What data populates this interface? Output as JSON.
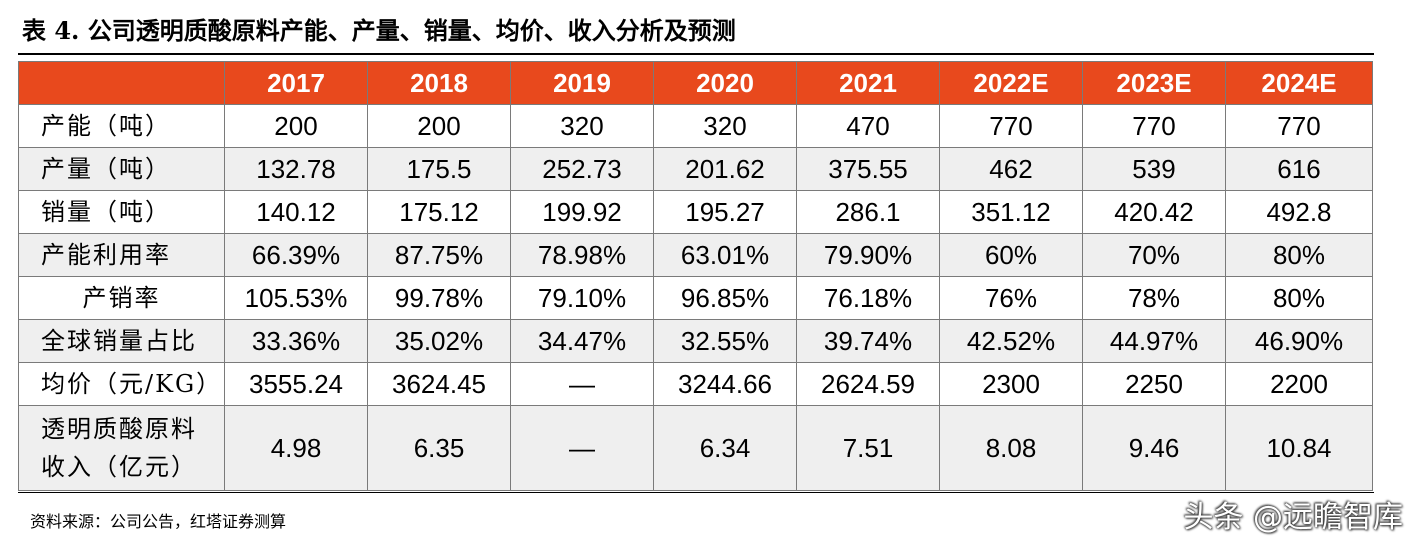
{
  "title": "表 4. 公司透明质酸原料产能、产量、销量、均价、收入分析及预测",
  "table": {
    "headers": [
      "",
      "2017",
      "2018",
      "2019",
      "2020",
      "2021",
      "2022E",
      "2023E",
      "2024E"
    ],
    "rows": [
      {
        "label": "产能（吨）",
        "values": [
          "200",
          "200",
          "320",
          "320",
          "470",
          "770",
          "770",
          "770"
        ]
      },
      {
        "label": "产量（吨）",
        "values": [
          "132.78",
          "175.5",
          "252.73",
          "201.62",
          "375.55",
          "462",
          "539",
          "616"
        ]
      },
      {
        "label": "销量（吨）",
        "values": [
          "140.12",
          "175.12",
          "199.92",
          "195.27",
          "286.1",
          "351.12",
          "420.42",
          "492.8"
        ]
      },
      {
        "label": "产能利用率",
        "values": [
          "66.39%",
          "87.75%",
          "78.98%",
          "63.01%",
          "79.90%",
          "60%",
          "70%",
          "80%"
        ]
      },
      {
        "label": "产销率",
        "values": [
          "105.53%",
          "99.78%",
          "79.10%",
          "96.85%",
          "76.18%",
          "76%",
          "78%",
          "80%"
        ]
      },
      {
        "label": "全球销量占比",
        "values": [
          "33.36%",
          "35.02%",
          "34.47%",
          "32.55%",
          "39.74%",
          "42.52%",
          "44.97%",
          "46.90%"
        ]
      },
      {
        "label": "均价（元/KG）",
        "values": [
          "3555.24",
          "3624.45",
          "—",
          "3244.66",
          "2624.59",
          "2300",
          "2250",
          "2200"
        ]
      },
      {
        "label_line1": "透明质酸原料",
        "label_line2": "收入（亿元）",
        "values": [
          "4.98",
          "6.35",
          "—",
          "6.34",
          "7.51",
          "8.08",
          "9.46",
          "10.84"
        ]
      }
    ]
  },
  "source": "资料来源：公司公告，红塔证券测算",
  "watermark": "头条 @远瞻智库",
  "colors": {
    "header_bg": "#e8491d",
    "header_text": "#ffffff",
    "alt_row_bg": "#efefef"
  }
}
